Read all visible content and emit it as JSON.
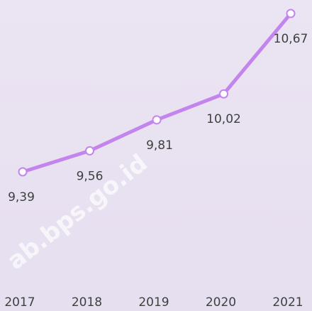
{
  "chart_data": {
    "type": "line",
    "categories": [
      "2017",
      "2018",
      "2019",
      "2020",
      "2021"
    ],
    "series": [
      {
        "color": "#c384ee",
        "values": [
          9.39,
          9.56,
          9.81,
          10.02,
          10.67
        ],
        "value_labels": [
          "9,39",
          "9,56",
          "9,81",
          "10,02",
          "10,67"
        ]
      }
    ],
    "watermark": "ab.bps.go.id"
  }
}
